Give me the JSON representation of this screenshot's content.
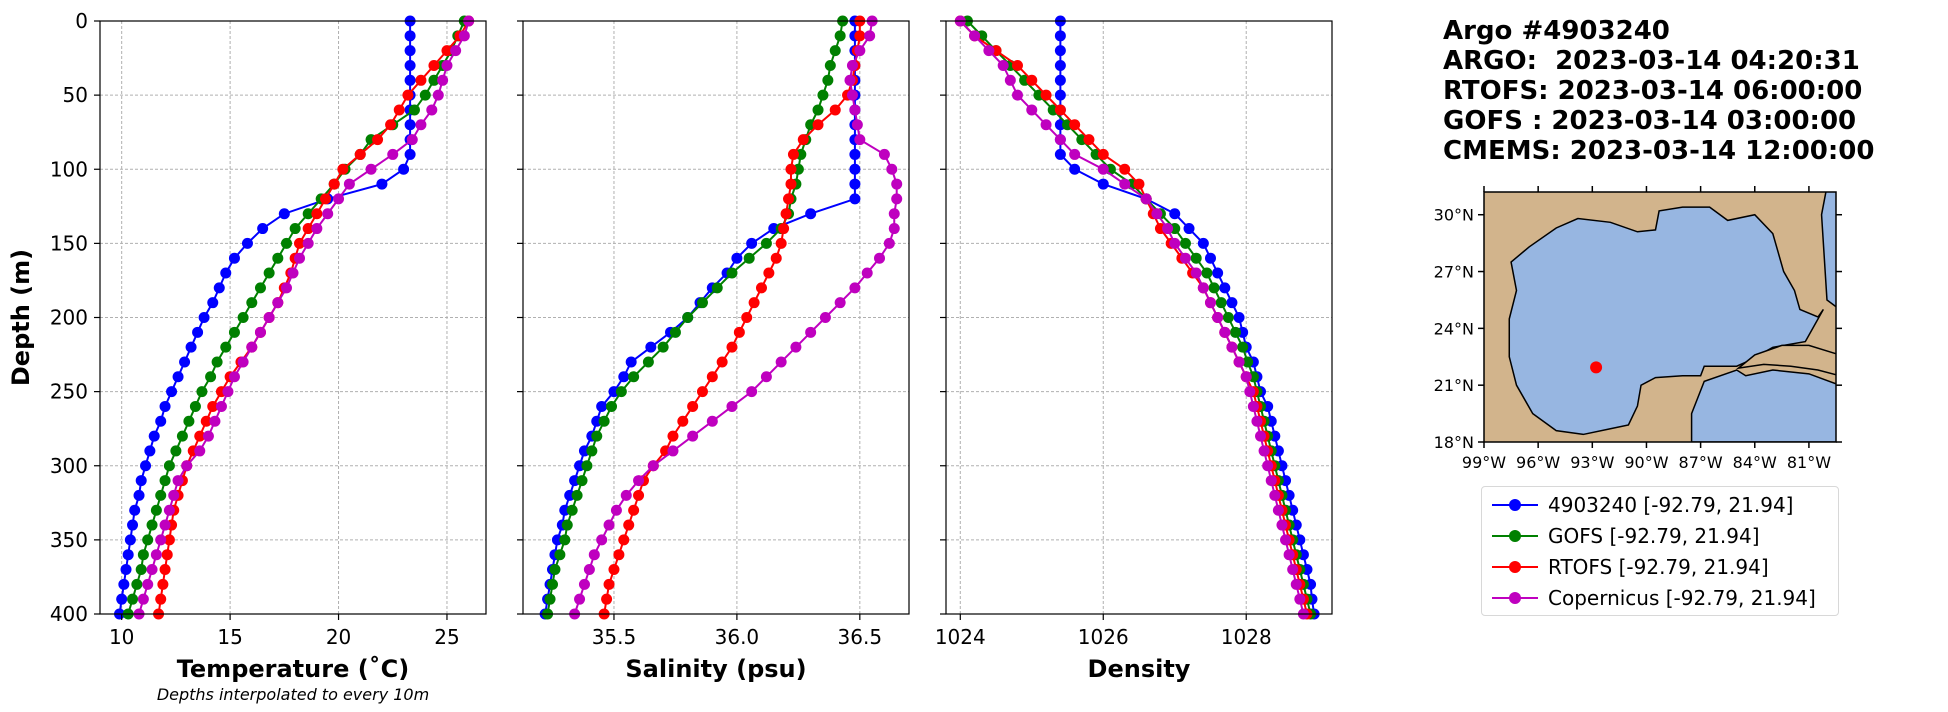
{
  "info": {
    "title": "Argo #4903240",
    "lines": [
      "ARGO:  2023-03-14 04:20:31",
      "RTOFS: 2023-03-14 06:00:00",
      "GOFS : 2023-03-14 03:00:00",
      "CMEMS: 2023-03-14 12:00:00"
    ]
  },
  "legend": [
    {
      "label": "4903240 [-92.79, 21.94]",
      "color": "#0000ff"
    },
    {
      "label": "GOFS [-92.79, 21.94]",
      "color": "#008000"
    },
    {
      "label": "RTOFS [-92.79, 21.94]",
      "color": "#ff0000"
    },
    {
      "label": "Copernicus [-92.79, 21.94]",
      "color": "#bf00bf"
    }
  ],
  "map": {
    "lat_ticks": [
      "30°N",
      "27°N",
      "24°N",
      "21°N",
      "18°N"
    ],
    "lon_ticks": [
      "99°W",
      "96°W",
      "93°W",
      "90°W",
      "87°W",
      "84°W",
      "81°W"
    ],
    "marker": {
      "lon": -92.79,
      "lat": 21.94
    },
    "land_color": "#d2b48c",
    "ocean_color": "#97b6e1"
  },
  "chart_data": [
    {
      "type": "line",
      "xlabel": "Temperature (˚C)",
      "ylabel": "Depth (m)",
      "note": "Depths interpolated to every 10m",
      "xlim": [
        9.0,
        26.8
      ],
      "ylim": [
        400,
        0
      ],
      "xticks": [
        "10",
        "15",
        "20",
        "25"
      ],
      "yticks": [
        "0",
        "50",
        "100",
        "150",
        "200",
        "250",
        "300",
        "350",
        "400"
      ],
      "grid": true,
      "depth": [
        0,
        10,
        20,
        30,
        40,
        50,
        60,
        70,
        80,
        90,
        100,
        110,
        120,
        130,
        140,
        150,
        160,
        170,
        180,
        190,
        200,
        210,
        220,
        230,
        240,
        250,
        260,
        270,
        280,
        290,
        300,
        310,
        320,
        330,
        340,
        350,
        360,
        370,
        380,
        390,
        400
      ],
      "series": [
        {
          "name": "4903240",
          "color": "#0000ff",
          "values": [
            23.3,
            23.3,
            23.3,
            23.3,
            23.3,
            23.3,
            23.3,
            23.3,
            23.3,
            23.3,
            23.0,
            22.0,
            19.5,
            17.5,
            16.5,
            15.8,
            15.2,
            14.8,
            14.5,
            14.2,
            13.8,
            13.5,
            13.2,
            12.9,
            12.6,
            12.3,
            12.0,
            11.8,
            11.5,
            11.3,
            11.1,
            10.9,
            10.8,
            10.6,
            10.5,
            10.4,
            10.3,
            10.2,
            10.1,
            10.0,
            9.9
          ]
        },
        {
          "name": "GOFS",
          "color": "#008000",
          "values": [
            25.8,
            25.5,
            25.2,
            24.8,
            24.4,
            24.0,
            23.5,
            22.5,
            21.5,
            21.0,
            20.3,
            19.8,
            19.2,
            18.6,
            18.0,
            17.6,
            17.2,
            16.8,
            16.4,
            16.0,
            15.6,
            15.2,
            14.8,
            14.4,
            14.1,
            13.7,
            13.4,
            13.1,
            12.8,
            12.5,
            12.2,
            12.0,
            11.8,
            11.6,
            11.4,
            11.2,
            11.0,
            10.9,
            10.7,
            10.5,
            10.3
          ]
        },
        {
          "name": "RTOFS",
          "color": "#ff0000",
          "values": [
            26.0,
            25.6,
            25.0,
            24.4,
            23.8,
            23.2,
            22.8,
            22.4,
            21.8,
            21.0,
            20.2,
            19.8,
            19.4,
            19.0,
            18.6,
            18.2,
            18.0,
            17.8,
            17.5,
            17.2,
            16.8,
            16.4,
            16.0,
            15.5,
            15.0,
            14.6,
            14.2,
            13.9,
            13.6,
            13.3,
            13.0,
            12.8,
            12.6,
            12.4,
            12.3,
            12.2,
            12.1,
            12.0,
            11.9,
            11.8,
            11.7
          ]
        },
        {
          "name": "Copernicus",
          "color": "#bf00bf",
          "values": [
            26.0,
            25.8,
            25.4,
            25.0,
            24.8,
            24.6,
            24.3,
            23.8,
            23.4,
            22.5,
            21.5,
            20.5,
            20.0,
            19.5,
            19.0,
            18.6,
            18.2,
            17.9,
            17.6,
            17.2,
            16.8,
            16.4,
            16.0,
            15.6,
            15.2,
            14.9,
            14.6,
            14.3,
            14.0,
            13.6,
            13.0,
            12.6,
            12.4,
            12.2,
            12.0,
            11.8,
            11.6,
            11.4,
            11.2,
            11.0,
            10.8
          ]
        }
      ]
    },
    {
      "type": "line",
      "xlabel": "Salinity (psu)",
      "ylabel": "",
      "xlim": [
        35.13,
        36.7
      ],
      "ylim": [
        400,
        0
      ],
      "xticks": [
        "35.5",
        "36.0",
        "36.5"
      ],
      "yticks": [],
      "grid": true,
      "depth": [
        0,
        10,
        20,
        30,
        40,
        50,
        60,
        70,
        80,
        90,
        100,
        110,
        120,
        130,
        140,
        150,
        160,
        170,
        180,
        190,
        200,
        210,
        220,
        230,
        240,
        250,
        260,
        270,
        280,
        290,
        300,
        310,
        320,
        330,
        340,
        350,
        360,
        370,
        380,
        390,
        400
      ],
      "series": [
        {
          "name": "4903240",
          "color": "#0000ff",
          "values": [
            36.48,
            36.48,
            36.48,
            36.48,
            36.48,
            36.48,
            36.48,
            36.48,
            36.48,
            36.48,
            36.48,
            36.48,
            36.48,
            36.3,
            36.15,
            36.06,
            36.0,
            35.96,
            35.9,
            35.85,
            35.8,
            35.73,
            35.65,
            35.57,
            35.54,
            35.5,
            35.45,
            35.43,
            35.41,
            35.38,
            35.36,
            35.34,
            35.32,
            35.3,
            35.29,
            35.27,
            35.26,
            35.25,
            35.24,
            35.23,
            35.22
          ]
        },
        {
          "name": "GOFS",
          "color": "#008000",
          "values": [
            36.43,
            36.42,
            36.4,
            36.38,
            36.37,
            36.35,
            36.33,
            36.3,
            36.28,
            36.26,
            36.25,
            36.24,
            36.22,
            36.21,
            36.18,
            36.12,
            36.05,
            35.98,
            35.92,
            35.86,
            35.8,
            35.75,
            35.7,
            35.64,
            35.58,
            35.53,
            35.49,
            35.46,
            35.43,
            35.41,
            35.39,
            35.37,
            35.35,
            35.33,
            35.31,
            35.3,
            35.28,
            35.26,
            35.25,
            35.24,
            35.23
          ]
        },
        {
          "name": "RTOFS",
          "color": "#ff0000",
          "values": [
            36.5,
            36.5,
            36.49,
            36.48,
            36.47,
            36.45,
            36.4,
            36.33,
            36.27,
            36.23,
            36.22,
            36.22,
            36.21,
            36.2,
            36.19,
            36.18,
            36.16,
            36.13,
            36.1,
            36.07,
            36.04,
            36.01,
            35.98,
            35.94,
            35.9,
            35.86,
            35.82,
            35.78,
            35.74,
            35.71,
            35.66,
            35.62,
            35.6,
            35.58,
            35.56,
            35.54,
            35.52,
            35.5,
            35.48,
            35.47,
            35.46
          ]
        },
        {
          "name": "Copernicus",
          "color": "#bf00bf",
          "values": [
            36.55,
            36.54,
            36.5,
            36.47,
            36.46,
            36.47,
            36.48,
            36.49,
            36.5,
            36.6,
            36.63,
            36.65,
            36.65,
            36.64,
            36.64,
            36.62,
            36.58,
            36.53,
            36.48,
            36.42,
            36.36,
            36.3,
            36.24,
            36.18,
            36.12,
            36.06,
            35.98,
            35.9,
            35.82,
            35.74,
            35.66,
            35.6,
            35.55,
            35.51,
            35.48,
            35.45,
            35.42,
            35.4,
            35.38,
            35.36,
            35.34
          ]
        }
      ]
    },
    {
      "type": "line",
      "xlabel": "Density",
      "ylabel": "",
      "xlim": [
        1023.8,
        1029.2
      ],
      "ylim": [
        400,
        0
      ],
      "xticks": [
        "1024",
        "1026",
        "1028"
      ],
      "yticks": [],
      "grid": true,
      "depth": [
        0,
        10,
        20,
        30,
        40,
        50,
        60,
        70,
        80,
        90,
        100,
        110,
        120,
        130,
        140,
        150,
        160,
        170,
        180,
        190,
        200,
        210,
        220,
        230,
        240,
        250,
        260,
        270,
        280,
        290,
        300,
        310,
        320,
        330,
        340,
        350,
        360,
        370,
        380,
        390,
        400
      ],
      "series": [
        {
          "name": "4903240",
          "color": "#0000ff",
          "values": [
            1025.4,
            1025.4,
            1025.4,
            1025.4,
            1025.4,
            1025.4,
            1025.4,
            1025.4,
            1025.4,
            1025.4,
            1025.6,
            1026.0,
            1026.6,
            1027.0,
            1027.2,
            1027.4,
            1027.5,
            1027.6,
            1027.7,
            1027.8,
            1027.9,
            1027.95,
            1028.0,
            1028.1,
            1028.15,
            1028.2,
            1028.3,
            1028.35,
            1028.4,
            1028.45,
            1028.5,
            1028.55,
            1028.6,
            1028.65,
            1028.7,
            1028.75,
            1028.8,
            1028.85,
            1028.9,
            1028.92,
            1028.95
          ]
        },
        {
          "name": "GOFS",
          "color": "#008000",
          "values": [
            1024.1,
            1024.3,
            1024.5,
            1024.7,
            1024.9,
            1025.1,
            1025.3,
            1025.5,
            1025.7,
            1025.9,
            1026.1,
            1026.4,
            1026.6,
            1026.8,
            1027.0,
            1027.15,
            1027.3,
            1027.45,
            1027.55,
            1027.65,
            1027.75,
            1027.85,
            1027.95,
            1028.02,
            1028.1,
            1028.15,
            1028.2,
            1028.25,
            1028.3,
            1028.35,
            1028.4,
            1028.45,
            1028.5,
            1028.55,
            1028.6,
            1028.65,
            1028.7,
            1028.75,
            1028.8,
            1028.85,
            1028.9
          ]
        },
        {
          "name": "RTOFS",
          "color": "#ff0000",
          "values": [
            1024.0,
            1024.2,
            1024.5,
            1024.8,
            1025.0,
            1025.2,
            1025.4,
            1025.6,
            1025.8,
            1026.0,
            1026.3,
            1026.5,
            1026.6,
            1026.7,
            1026.8,
            1026.95,
            1027.1,
            1027.25,
            1027.4,
            1027.5,
            1027.6,
            1027.7,
            1027.8,
            1027.9,
            1028.0,
            1028.1,
            1028.15,
            1028.2,
            1028.25,
            1028.3,
            1028.35,
            1028.4,
            1028.45,
            1028.5,
            1028.55,
            1028.6,
            1028.65,
            1028.7,
            1028.75,
            1028.8,
            1028.85
          ]
        },
        {
          "name": "Copernicus",
          "color": "#bf00bf",
          "values": [
            1024.0,
            1024.2,
            1024.4,
            1024.6,
            1024.7,
            1024.8,
            1025.0,
            1025.2,
            1025.4,
            1025.6,
            1026.0,
            1026.3,
            1026.6,
            1026.75,
            1026.9,
            1027.0,
            1027.15,
            1027.3,
            1027.4,
            1027.5,
            1027.6,
            1027.7,
            1027.8,
            1027.9,
            1028.0,
            1028.05,
            1028.1,
            1028.15,
            1028.2,
            1028.25,
            1028.3,
            1028.35,
            1028.4,
            1028.45,
            1028.5,
            1028.55,
            1028.6,
            1028.65,
            1028.7,
            1028.75,
            1028.8
          ]
        }
      ]
    }
  ]
}
